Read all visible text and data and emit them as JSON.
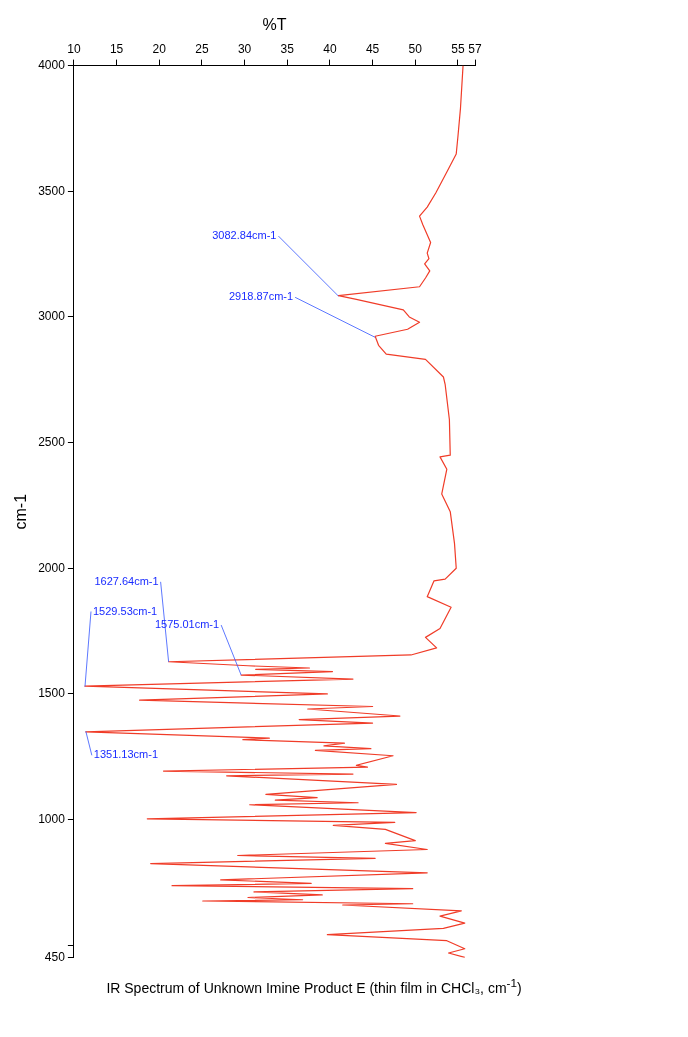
{
  "chart_data": {
    "type": "line",
    "title": "IR Spectrum of Unknown Imine Product E (thin film in CHCl₃, cm$^{-1}$)",
    "xlabel": "%T",
    "ylabel": "cm-1",
    "orientation": "horizontal",
    "xlim": [
      10,
      57
    ],
    "xticks": [
      10,
      15,
      20,
      25,
      30,
      35,
      40,
      45,
      50,
      55,
      57
    ],
    "ylim": [
      450,
      4000
    ],
    "yticks": [
      4000,
      3500,
      3000,
      2500,
      2000,
      1500,
      1000,
      {
        "value": 500,
        "label": null
      },
      450
    ],
    "grid": false,
    "legend": false,
    "marker": "none",
    "series": [
      {
        "color": "#f03c28",
        "x": [
          4000,
          3831,
          3718,
          3648,
          3577,
          3493,
          3437,
          3401,
          3366,
          3296,
          3254,
          3232,
          3211,
          3183,
          3155,
          3120,
          3085,
          3070,
          3028,
          3000,
          2979,
          2951,
          2923,
          2887,
          2852,
          2831,
          2761,
          2732,
          2591,
          2450,
          2443,
          2394,
          2295,
          2225,
          2098,
          2000,
          1957,
          1950,
          1887,
          1845,
          1760,
          1725,
          1683,
          1655,
          1628,
          1612,
          1603,
          1598,
          1589,
          1575,
          1559,
          1531,
          1500,
          1475,
          1450,
          1440,
          1412,
          1398,
          1384,
          1349,
          1324,
          1318,
          1304,
          1293,
          1282,
          1275,
          1254,
          1216,
          1209,
          1193,
          1181,
          1174,
          1140,
          1100,
          1087,
          1077,
          1067,
          1059,
          1028,
          1003,
          989,
          977,
          961,
          916,
          905,
          881,
          857,
          846,
          825,
          788,
          760,
          746,
          737,
          725,
          712,
          700,
          690,
          681,
          676,
          665,
          660,
          637,
          616,
          588,
          567,
          542,
          518,
          486,
          469,
          452
        ],
        "values": [
          55.6,
          55.3,
          55,
          54.8,
          53.7,
          52.4,
          51.4,
          50.5,
          50.9,
          51.8,
          51.4,
          51.6,
          51.1,
          51.7,
          51.2,
          50.5,
          41,
          43.1,
          48.6,
          49.3,
          50.5,
          49.1,
          45.3,
          45.7,
          46.6,
          51.2,
          53.3,
          53.5,
          54,
          54.1,
          52.9,
          53.7,
          53.1,
          54.1,
          54.6,
          54.8,
          53.5,
          52.2,
          51.4,
          54.2,
          52.9,
          51.2,
          52.5,
          49.5,
          21.1,
          30.4,
          37.6,
          31.3,
          40.3,
          29.6,
          42.7,
          11.3,
          39.7,
          17.7,
          45,
          37.4,
          48.2,
          36.4,
          45,
          11.4,
          32.9,
          29.8,
          41.7,
          39.3,
          44.8,
          38.3,
          47.4,
          43.1,
          44.4,
          20.5,
          42.7,
          27.9,
          47.8,
          32.5,
          38.5,
          33.6,
          43.3,
          30.6,
          50.1,
          18.6,
          47.6,
          40.4,
          46.5,
          50,
          46.5,
          51.4,
          29.2,
          45.3,
          19,
          51.4,
          27.2,
          37.8,
          21.5,
          49.7,
          31.1,
          39.1,
          30.4,
          36.8,
          25.1,
          49.7,
          41.5,
          55.4,
          52.9,
          55.8,
          53.3,
          39.7,
          53.7,
          55.8,
          53.9,
          55.8
        ]
      }
    ],
    "annotations": [
      {
        "text": "3082.84cm-1",
        "x": 41,
        "y": 3082.84
      },
      {
        "text": "2918.87cm-1",
        "x": 45.3,
        "y": 2918.87
      },
      {
        "text": "1627.64cm-1",
        "x": 21.1,
        "y": 1627.64
      },
      {
        "text": "1575.01cm-1",
        "x": 29.6,
        "y": 1575.01
      },
      {
        "text": "1529.53cm-1",
        "x": 11.3,
        "y": 1529.53
      },
      {
        "text": "1351.13cm-1",
        "x": 11.4,
        "y": 1351.13
      }
    ]
  }
}
